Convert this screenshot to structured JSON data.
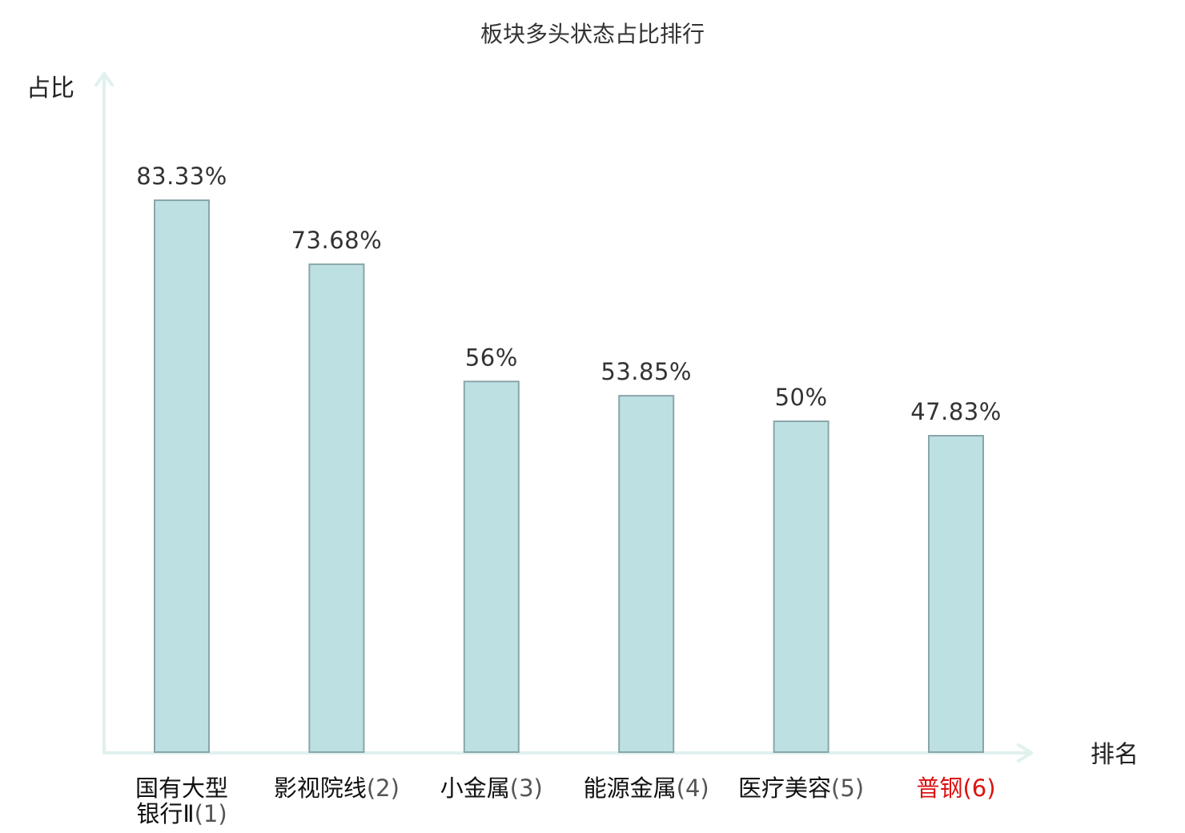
{
  "chart_data": {
    "type": "bar",
    "title": "板块多头状态占比排行",
    "xlabel": "排名",
    "ylabel": "占比",
    "categories": [
      {
        "lines": [
          "国有大型",
          "银行Ⅱ"
        ],
        "rank": "(1)",
        "highlight": false
      },
      {
        "lines": [
          "影视院线"
        ],
        "rank": "(2)",
        "highlight": false
      },
      {
        "lines": [
          "小金属"
        ],
        "rank": "(3)",
        "highlight": false
      },
      {
        "lines": [
          "能源金属"
        ],
        "rank": "(4)",
        "highlight": false
      },
      {
        "lines": [
          "医疗美容"
        ],
        "rank": "(5)",
        "highlight": false
      },
      {
        "lines": [
          "普钢"
        ],
        "rank": "(6)",
        "highlight": true
      }
    ],
    "values": [
      83.33,
      73.68,
      56,
      53.85,
      50,
      47.83
    ],
    "value_labels": [
      "83.33%",
      "73.68%",
      "56%",
      "53.85%",
      "50%",
      "47.83%"
    ],
    "ylim": [
      0,
      100
    ],
    "grid": false,
    "colors": {
      "bar_fill": "#bde0e3",
      "bar_stroke": "#8aa6a9",
      "axis": "#e0f1ee",
      "highlight": "#dd1111"
    }
  }
}
